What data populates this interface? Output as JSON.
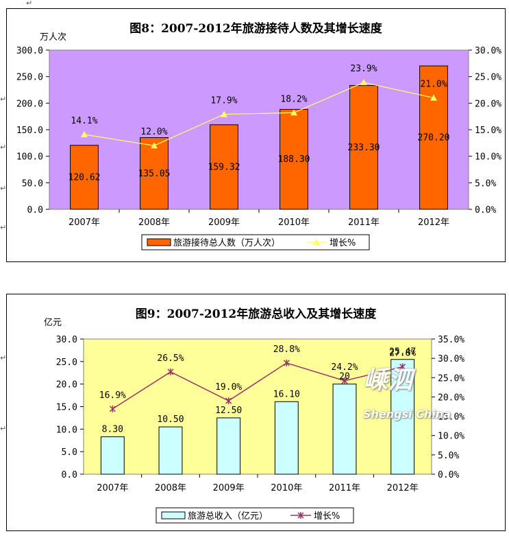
{
  "chart_data": [
    {
      "type": "bar",
      "title": "图8：2007-2012年旅游接待人数及其增长速度",
      "ylabel": "万人次",
      "categories": [
        "2007年",
        "2008年",
        "2009年",
        "2010年",
        "2011年",
        "2012年"
      ],
      "series": [
        {
          "name": "旅游接待总人数（万人次）",
          "type": "bar",
          "axis": "left",
          "values": [
            120.62,
            135.05,
            159.32,
            188.3,
            233.3,
            270.2
          ],
          "labels": [
            "120.62",
            "135.05",
            "159.32",
            "188.30",
            "233.30",
            "270.20"
          ]
        },
        {
          "name": "增长%",
          "type": "line",
          "axis": "right",
          "values": [
            14.1,
            12.0,
            17.9,
            18.2,
            23.9,
            21.0
          ],
          "labels": [
            "14.1%",
            "12.0%",
            "17.9%",
            "18.2%",
            "23.9%",
            "21.0%"
          ]
        }
      ],
      "ylim": [
        0,
        300
      ],
      "yticks": [
        "0.0",
        "50.0",
        "100.0",
        "150.0",
        "200.0",
        "250.0",
        "300.0"
      ],
      "y2lim": [
        0,
        30
      ],
      "y2ticks": [
        "0.0%",
        "5.0%",
        "10.0%",
        "15.0%",
        "20.0%",
        "25.0%",
        "30.0%"
      ],
      "grid": false,
      "legend": "bottom",
      "colors": {
        "plot_bg": "#cc99ff",
        "bar": "#ff6600",
        "line": "#ffff66",
        "frame_bg": "#ffffff"
      }
    },
    {
      "type": "bar",
      "title": "图9：2007-2012年旅游总收入及其增长速度",
      "ylabel": "亿元",
      "categories": [
        "2007年",
        "2008年",
        "2009年",
        "2010年",
        "2011年",
        "2012年"
      ],
      "series": [
        {
          "name": "旅游总收入（亿元）",
          "type": "bar",
          "axis": "left",
          "values": [
            8.3,
            10.5,
            12.5,
            16.1,
            20.0,
            25.47
          ],
          "labels": [
            "8.30",
            "10.50",
            "12.50",
            "16.10",
            "20",
            "25.47"
          ]
        },
        {
          "name": "增长%",
          "type": "line",
          "axis": "right",
          "values": [
            16.9,
            26.5,
            19.0,
            28.8,
            24.2,
            27.8
          ],
          "labels": [
            "16.9%",
            "26.5%",
            "19.0%",
            "28.8%",
            "24.2%",
            "27.8%"
          ]
        }
      ],
      "ylim": [
        0,
        30
      ],
      "yticks": [
        "0.0",
        "5.0",
        "10.0",
        "15.0",
        "20.0",
        "25.0",
        "30.0"
      ],
      "y2lim": [
        0,
        35
      ],
      "y2ticks": [
        "0.0%",
        "5.0%",
        "10.0%",
        "15.0%",
        "20.0%",
        "25.0%",
        "30.0%",
        "35.0%"
      ],
      "grid": false,
      "legend": "bottom",
      "colors": {
        "plot_bg": "#ffff99",
        "bar": "#ccffff",
        "line": "#993366",
        "frame_bg": "#ffffff"
      }
    }
  ],
  "watermark": {
    "text": "Shengsi China",
    "glyphs": "嵊泗"
  }
}
